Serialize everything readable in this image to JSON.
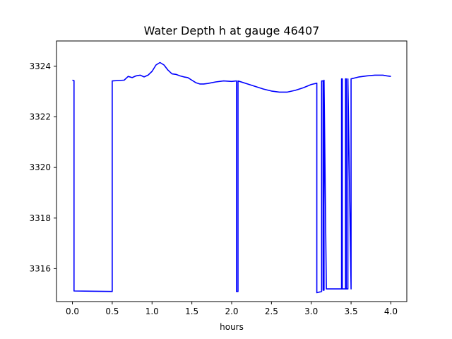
{
  "chart_data": {
    "type": "line",
    "title": "Water Depth h at gauge 46407",
    "xlabel": "hours",
    "ylabel": "",
    "xlim": [
      -0.2,
      4.2
    ],
    "ylim": [
      3314.7,
      3325.0
    ],
    "xticks": [
      0.0,
      0.5,
      1.0,
      1.5,
      2.0,
      2.5,
      3.0,
      3.5,
      4.0
    ],
    "xtick_labels": [
      "0.0",
      "0.5",
      "1.0",
      "1.5",
      "2.0",
      "2.5",
      "3.0",
      "3.5",
      "4.0"
    ],
    "yticks": [
      3316,
      3318,
      3320,
      3322,
      3324
    ],
    "ytick_labels": [
      "3316",
      "3318",
      "3320",
      "3322",
      "3324"
    ],
    "grid": false,
    "series": [
      {
        "color": "#0000ff",
        "x": [
          0.0,
          0.02,
          0.02,
          0.5,
          0.5,
          0.65,
          0.7,
          0.75,
          0.8,
          0.85,
          0.9,
          0.95,
          1.0,
          1.05,
          1.1,
          1.15,
          1.2,
          1.25,
          1.3,
          1.35,
          1.4,
          1.45,
          1.5,
          1.55,
          1.6,
          1.65,
          1.7,
          1.8,
          1.9,
          2.0,
          2.06,
          2.06,
          2.08,
          2.08,
          2.1,
          2.2,
          2.3,
          2.4,
          2.5,
          2.6,
          2.7,
          2.8,
          2.9,
          3.0,
          3.07,
          3.07,
          3.13,
          3.13,
          3.15,
          3.15,
          3.16,
          3.16,
          3.19,
          3.35,
          3.38,
          3.38,
          3.39,
          3.39,
          3.43,
          3.43,
          3.44,
          3.44,
          3.46,
          3.46,
          3.5,
          3.5,
          3.6,
          3.7,
          3.8,
          3.85,
          3.9,
          3.95,
          4.0
        ],
        "y": [
          3323.45,
          3323.43,
          3315.12,
          3315.1,
          3323.42,
          3323.45,
          3323.6,
          3323.55,
          3323.62,
          3323.65,
          3323.58,
          3323.65,
          3323.8,
          3324.05,
          3324.15,
          3324.05,
          3323.85,
          3323.7,
          3323.68,
          3323.62,
          3323.58,
          3323.55,
          3323.45,
          3323.35,
          3323.3,
          3323.3,
          3323.32,
          3323.38,
          3323.42,
          3323.4,
          3323.42,
          3315.1,
          3315.1,
          3323.42,
          3323.4,
          3323.3,
          3323.2,
          3323.1,
          3323.02,
          3322.98,
          3322.98,
          3323.05,
          3323.15,
          3323.28,
          3323.33,
          3315.05,
          3315.1,
          3323.42,
          3323.42,
          3315.15,
          3315.15,
          3323.45,
          3315.2,
          3315.2,
          3315.2,
          3323.5,
          3323.5,
          3315.2,
          3315.2,
          3323.5,
          3323.5,
          3315.2,
          3315.2,
          3323.5,
          3315.2,
          3323.5,
          3323.58,
          3323.62,
          3323.65,
          3323.65,
          3323.65,
          3323.62,
          3323.6
        ]
      }
    ]
  }
}
